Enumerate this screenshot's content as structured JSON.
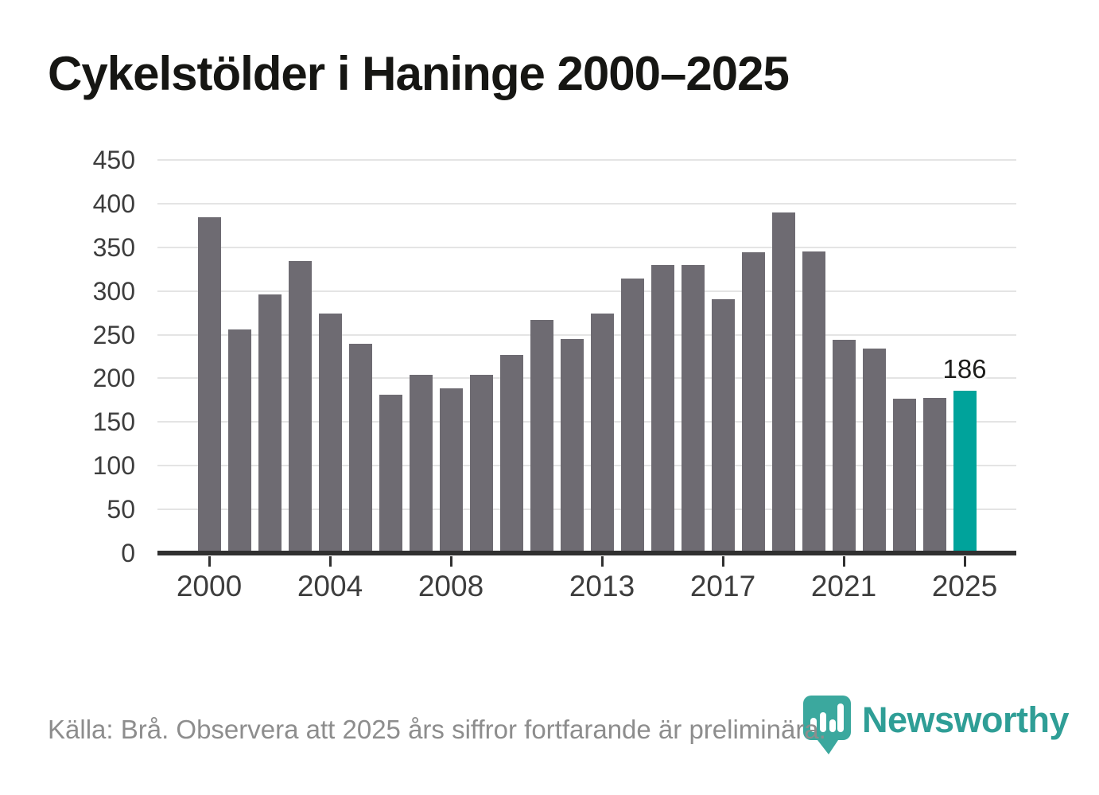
{
  "title": "Cykelstölder i Haninge 2000–2025",
  "chart_data": {
    "type": "bar",
    "x": [
      2000,
      2001,
      2002,
      2003,
      2004,
      2005,
      2006,
      2007,
      2008,
      2009,
      2010,
      2011,
      2012,
      2013,
      2014,
      2015,
      2016,
      2017,
      2018,
      2019,
      2020,
      2021,
      2022,
      2023,
      2024,
      2025
    ],
    "values": [
      384,
      256,
      296,
      334,
      274,
      240,
      181,
      204,
      189,
      204,
      227,
      267,
      245,
      274,
      314,
      330,
      330,
      291,
      344,
      390,
      345,
      244,
      234,
      177,
      178,
      186
    ],
    "title": "Cykelstölder i Haninge 2000–2025",
    "xlabel": "",
    "ylabel": "",
    "ylim": [
      0,
      450
    ],
    "yticks": [
      0,
      50,
      100,
      150,
      200,
      250,
      300,
      350,
      400,
      450
    ],
    "xticks": [
      2000,
      2004,
      2008,
      2013,
      2017,
      2021,
      2025
    ],
    "grid": "horizontal",
    "legend": "none",
    "highlight_year": 2025,
    "highlight_value_label": "186"
  },
  "colors": {
    "bar": "#6e6b72",
    "highlight_bar": "#00a39b",
    "gridline": "#e4e4e4",
    "axis": "#303030",
    "tick_label": "#3d3d3d",
    "value_label": "#1d1d1b",
    "footer_text": "#8d8d8d",
    "logo_teal": "#2f9e96",
    "logo_icon_teal": "#3ba89e"
  },
  "footer": {
    "source_note": "Källa: Brå. Observera att 2025 års siffror fortfarande är preliminära.",
    "logo_text": "Newsworthy"
  }
}
